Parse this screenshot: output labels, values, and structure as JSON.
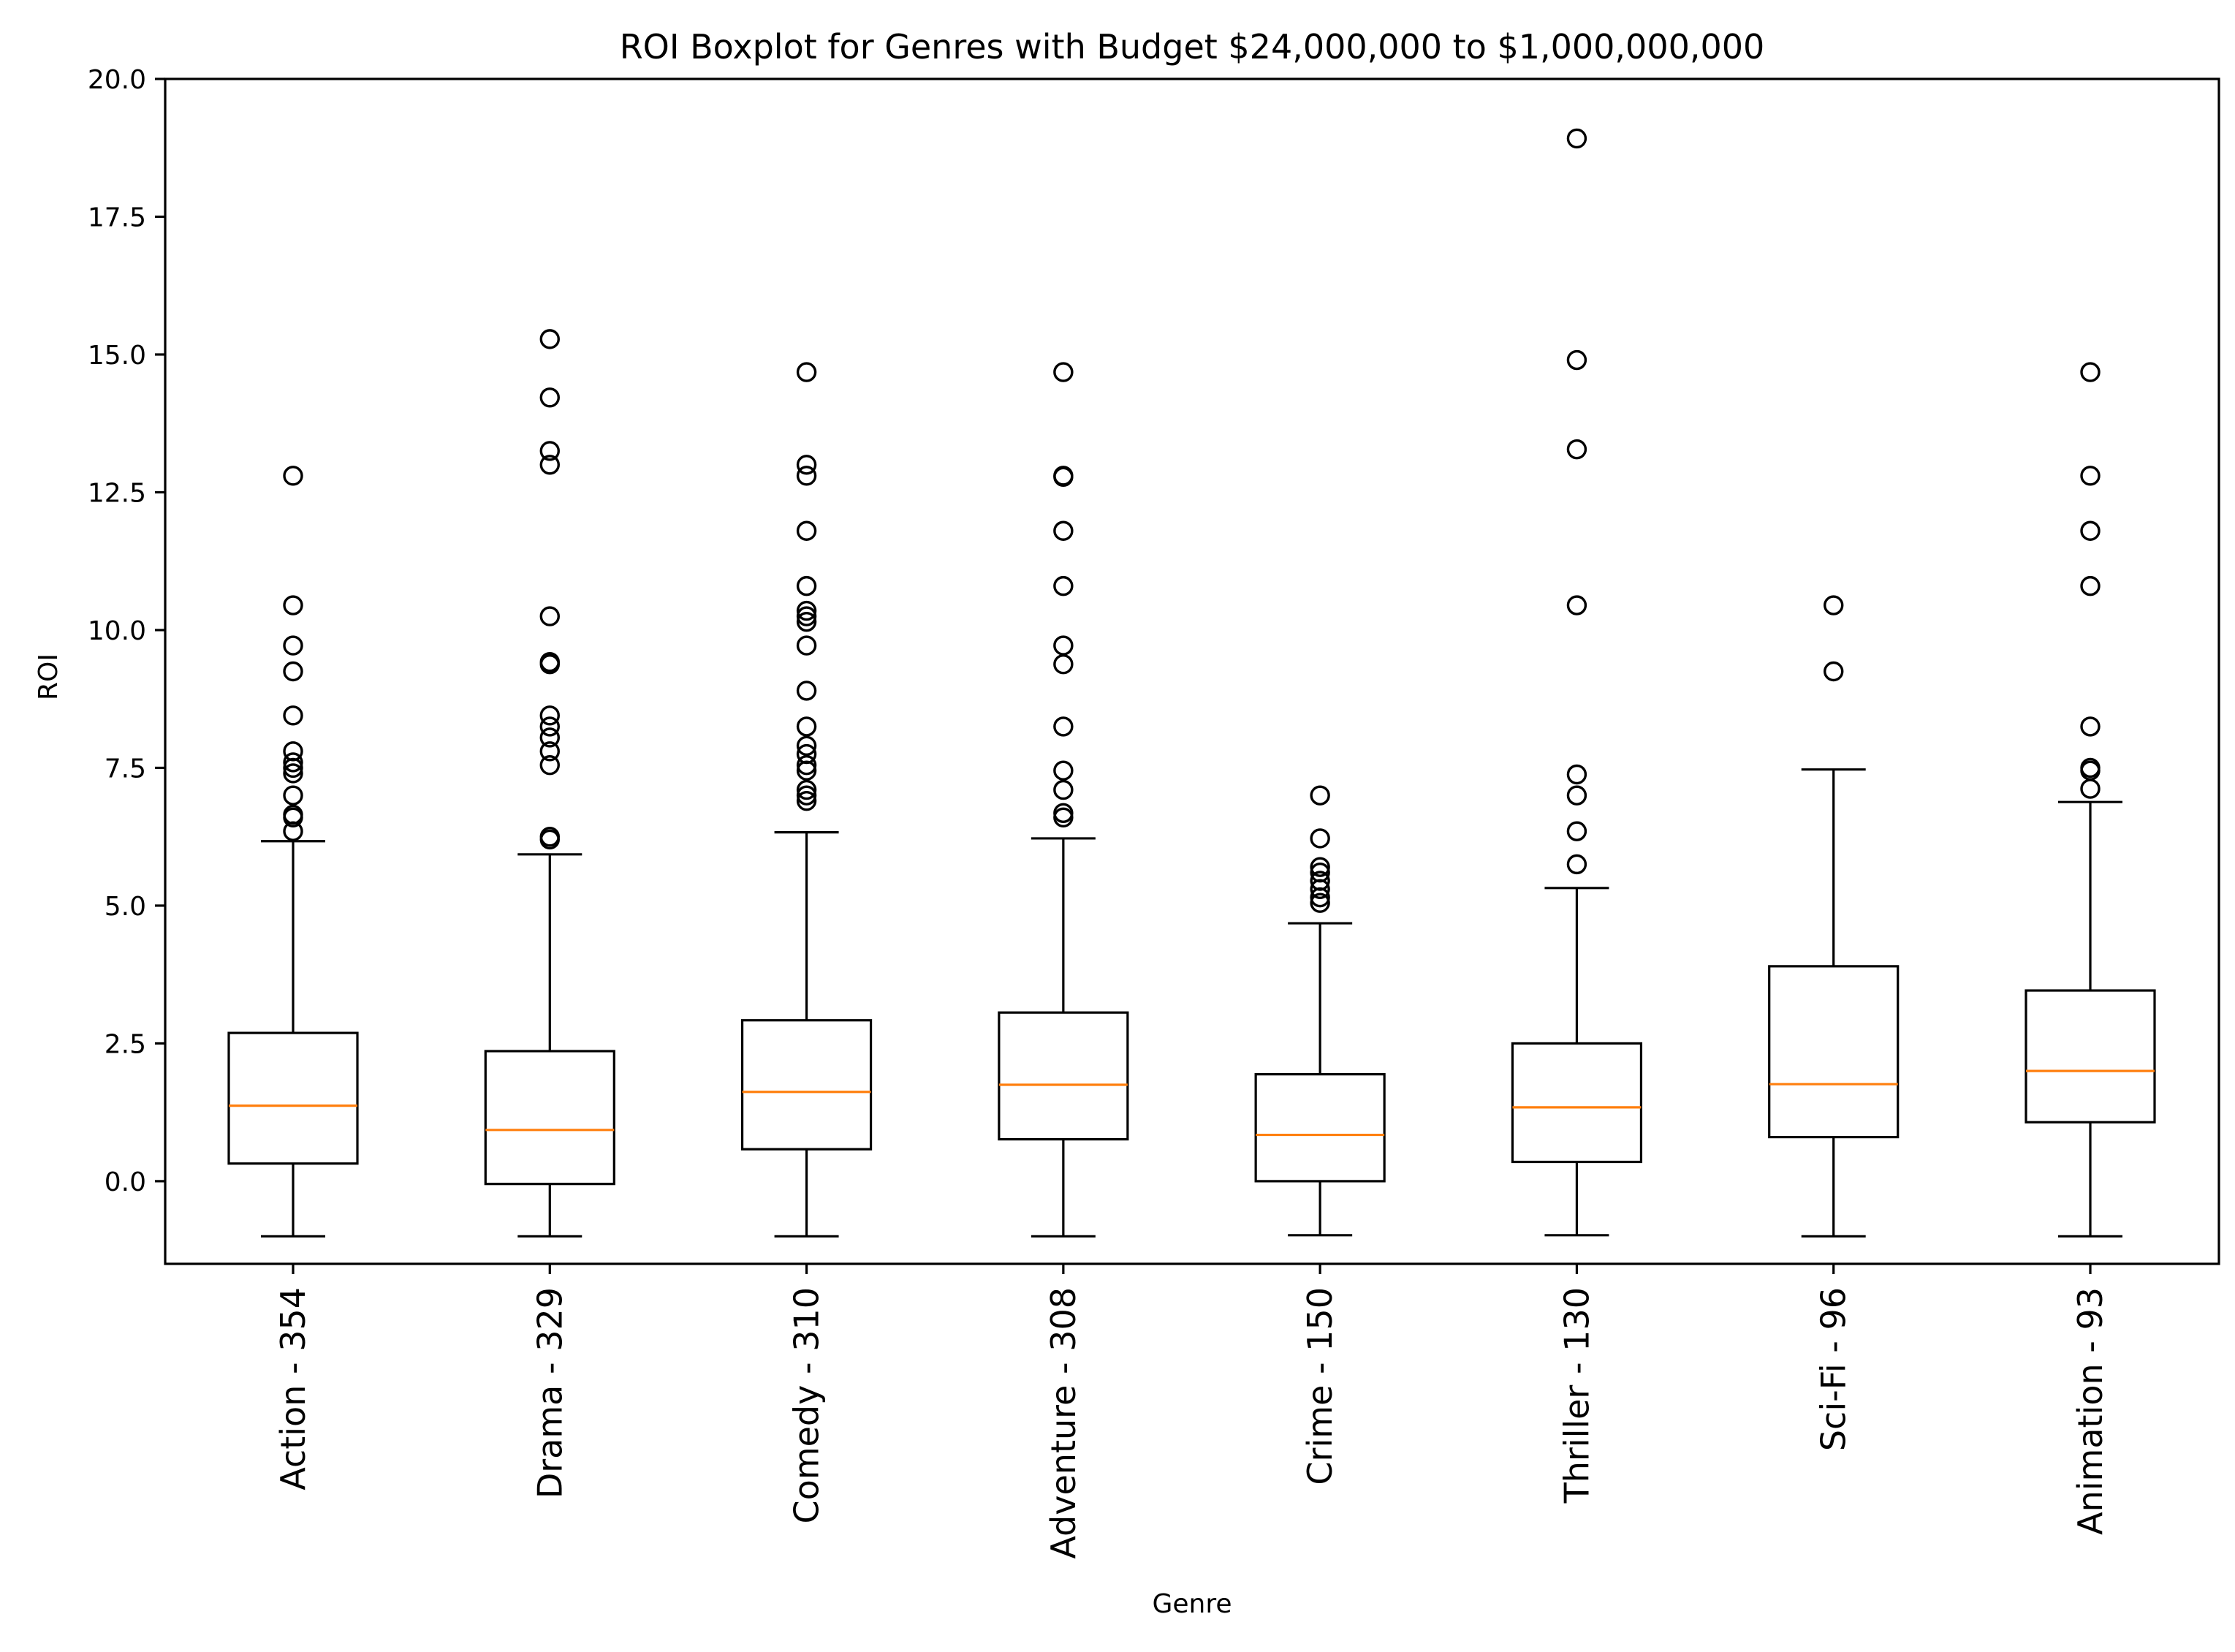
{
  "chart_data": {
    "type": "boxplot",
    "title": "ROI Boxplot for Genres with Budget $24,000,000 to $1,000,000,000",
    "xlabel": "Genre",
    "ylabel": "ROI",
    "ylim": [
      -1.5,
      20.0
    ],
    "yticks": [
      0.0,
      2.5,
      5.0,
      7.5,
      10.0,
      12.5,
      15.0,
      17.5,
      20.0
    ],
    "ytick_labels": [
      "0.0",
      "2.5",
      "5.0",
      "7.5",
      "10.0",
      "12.5",
      "15.0",
      "17.5",
      "20.0"
    ],
    "grid": false,
    "median_color": "#ff7f0e",
    "box_color": "#000000",
    "categories": [
      "Action - 354",
      "Drama - 329",
      "Comedy - 310",
      "Adventure - 308",
      "Crime - 150",
      "Thriller - 130",
      "Sci-Fi - 96",
      "Animation - 93"
    ],
    "boxes": [
      {
        "label": "Action - 354",
        "whisker_low": -1.0,
        "q1": 0.32,
        "median": 1.37,
        "q3": 2.69,
        "whisker_high": 6.17,
        "outliers": [
          6.35,
          6.6,
          6.65,
          7.0,
          7.4,
          7.5,
          7.6,
          7.8,
          8.45,
          9.25,
          9.72,
          10.45,
          12.8
        ]
      },
      {
        "label": "Drama - 329",
        "whisker_low": -1.0,
        "q1": -0.05,
        "median": 0.93,
        "q3": 2.36,
        "whisker_high": 5.93,
        "outliers": [
          6.2,
          6.25,
          7.55,
          7.8,
          8.05,
          8.25,
          8.45,
          9.38,
          9.42,
          10.25,
          13.0,
          13.25,
          14.22,
          15.28
        ]
      },
      {
        "label": "Comedy - 310",
        "whisker_low": -1.0,
        "q1": 0.58,
        "median": 1.62,
        "q3": 2.92,
        "whisker_high": 6.33,
        "outliers": [
          6.9,
          7.0,
          7.1,
          7.45,
          7.55,
          7.75,
          7.9,
          8.25,
          8.9,
          9.72,
          10.15,
          10.25,
          10.35,
          10.8,
          11.8,
          12.8,
          13.0,
          14.68
        ]
      },
      {
        "label": "Adventure - 308",
        "whisker_low": -1.0,
        "q1": 0.76,
        "median": 1.75,
        "q3": 3.06,
        "whisker_high": 6.22,
        "outliers": [
          6.6,
          6.68,
          7.1,
          7.45,
          8.25,
          9.38,
          9.72,
          10.8,
          11.8,
          12.78,
          12.8,
          14.68
        ]
      },
      {
        "label": "Crime - 150",
        "whisker_low": -0.98,
        "q1": 0.0,
        "median": 0.84,
        "q3": 1.94,
        "whisker_high": 4.68,
        "outliers": [
          5.05,
          5.15,
          5.3,
          5.45,
          5.6,
          5.7,
          6.22,
          7.0
        ]
      },
      {
        "label": "Thriller - 130",
        "whisker_low": -0.98,
        "q1": 0.35,
        "median": 1.34,
        "q3": 2.5,
        "whisker_high": 5.32,
        "outliers": [
          5.75,
          6.35,
          7.0,
          7.38,
          10.45,
          13.28,
          14.9,
          18.92
        ]
      },
      {
        "label": "Sci-Fi - 96",
        "whisker_low": -1.0,
        "q1": 0.8,
        "median": 1.76,
        "q3": 3.9,
        "whisker_high": 7.47,
        "outliers": [
          9.25,
          10.45
        ]
      },
      {
        "label": "Animation - 93",
        "whisker_low": -1.0,
        "q1": 1.07,
        "median": 2.0,
        "q3": 3.46,
        "whisker_high": 6.88,
        "outliers": [
          7.12,
          7.45,
          7.5,
          8.25,
          10.8,
          11.8,
          12.8,
          14.68
        ]
      }
    ]
  }
}
